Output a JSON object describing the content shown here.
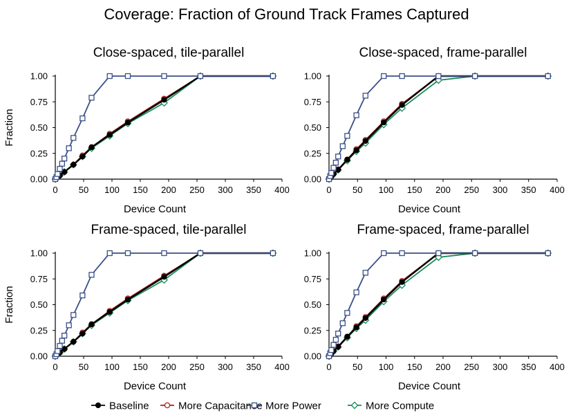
{
  "title": "Coverage: Fraction of Ground Track Frames Captured",
  "colors": {
    "Baseline": "#000000",
    "More Capacitance": "#b01c1c",
    "More Power": "#3a4f88",
    "More Compute": "#1a8a5a"
  },
  "legend": {
    "placement": "bottom-center",
    "entries": [
      {
        "name": "Baseline",
        "marker": "filled-circle"
      },
      {
        "name": "More Capacitance",
        "marker": "open-circle"
      },
      {
        "name": "More Power",
        "marker": "open-square"
      },
      {
        "name": "More Compute",
        "marker": "open-diamond"
      }
    ]
  },
  "chart_data": [
    {
      "type": "line",
      "title": "Close-spaced, tile-parallel",
      "xlabel": "Device Count",
      "ylabel": "Fraction",
      "xlim": [
        0,
        400
      ],
      "ylim": [
        0,
        1
      ],
      "xticks": [
        "0",
        "50",
        "100",
        "150",
        "200",
        "250",
        "300",
        "350",
        "400"
      ],
      "yticks": [
        "0.00",
        "0.25",
        "0.50",
        "0.75",
        "1.00"
      ],
      "grid": false,
      "series": [
        {
          "name": "Baseline",
          "x": [
            0,
            2,
            4,
            8,
            16,
            32,
            48,
            64,
            96,
            128,
            192,
            256,
            384
          ],
          "y": [
            0,
            0.01,
            0.02,
            0.035,
            0.07,
            0.14,
            0.22,
            0.31,
            0.43,
            0.55,
            0.77,
            1.0,
            1.0
          ]
        },
        {
          "name": "More Capacitance",
          "x": [
            0,
            2,
            4,
            8,
            16,
            32,
            48,
            64,
            96,
            128,
            192,
            256,
            384
          ],
          "y": [
            0,
            0.01,
            0.02,
            0.035,
            0.07,
            0.14,
            0.23,
            0.31,
            0.44,
            0.56,
            0.78,
            1.0,
            1.0
          ]
        },
        {
          "name": "More Power",
          "x": [
            0,
            2,
            4,
            8,
            12,
            16,
            24,
            32,
            48,
            64,
            96,
            128,
            192,
            256,
            384
          ],
          "y": [
            0,
            0.02,
            0.05,
            0.1,
            0.15,
            0.2,
            0.3,
            0.4,
            0.59,
            0.79,
            1.0,
            1.0,
            1.0,
            1.0,
            1.0
          ]
        },
        {
          "name": "More Compute",
          "x": [
            0,
            2,
            4,
            8,
            16,
            32,
            48,
            64,
            96,
            128,
            192,
            256,
            384
          ],
          "y": [
            0,
            0.01,
            0.02,
            0.035,
            0.07,
            0.14,
            0.22,
            0.3,
            0.42,
            0.54,
            0.74,
            1.0,
            1.0
          ]
        }
      ]
    },
    {
      "type": "line",
      "title": "Close-spaced, frame-parallel",
      "xlabel": "Device Count",
      "ylabel": "",
      "xlim": [
        0,
        400
      ],
      "ylim": [
        0,
        1
      ],
      "xticks": [
        "0",
        "50",
        "100",
        "150",
        "200",
        "250",
        "300",
        "350",
        "400"
      ],
      "yticks": [
        "0.00",
        "0.25",
        "0.50",
        "0.75",
        "1.00"
      ],
      "grid": false,
      "series": [
        {
          "name": "Baseline",
          "x": [
            0,
            2,
            4,
            8,
            16,
            32,
            48,
            64,
            96,
            128,
            192,
            256,
            384
          ],
          "y": [
            0,
            0.01,
            0.025,
            0.05,
            0.09,
            0.19,
            0.28,
            0.37,
            0.55,
            0.72,
            1.0,
            1.0,
            1.0
          ]
        },
        {
          "name": "More Capacitance",
          "x": [
            0,
            2,
            4,
            8,
            16,
            32,
            48,
            64,
            96,
            128,
            192,
            256,
            384
          ],
          "y": [
            0,
            0.01,
            0.025,
            0.05,
            0.095,
            0.19,
            0.29,
            0.38,
            0.56,
            0.73,
            1.0,
            1.0,
            1.0
          ]
        },
        {
          "name": "More Power",
          "x": [
            0,
            2,
            4,
            8,
            12,
            16,
            24,
            32,
            48,
            64,
            96,
            128,
            192,
            256,
            384
          ],
          "y": [
            0,
            0.03,
            0.06,
            0.11,
            0.16,
            0.22,
            0.32,
            0.42,
            0.62,
            0.81,
            1.0,
            1.0,
            1.0,
            1.0,
            1.0
          ]
        },
        {
          "name": "More Compute",
          "x": [
            0,
            2,
            4,
            8,
            16,
            32,
            48,
            64,
            96,
            128,
            192,
            256,
            384
          ],
          "y": [
            0,
            0.01,
            0.025,
            0.05,
            0.09,
            0.18,
            0.27,
            0.35,
            0.53,
            0.69,
            0.96,
            1.0,
            1.0
          ]
        }
      ]
    },
    {
      "type": "line",
      "title": "Frame-spaced, tile-parallel",
      "xlabel": "Device Count",
      "ylabel": "Fraction",
      "xlim": [
        0,
        400
      ],
      "ylim": [
        0,
        1
      ],
      "xticks": [
        "0",
        "50",
        "100",
        "150",
        "200",
        "250",
        "300",
        "350",
        "400"
      ],
      "yticks": [
        "0.00",
        "0.25",
        "0.50",
        "0.75",
        "1.00"
      ],
      "grid": false,
      "series": [
        {
          "name": "Baseline",
          "x": [
            0,
            2,
            4,
            8,
            16,
            32,
            48,
            64,
            96,
            128,
            192,
            256,
            384
          ],
          "y": [
            0,
            0.01,
            0.02,
            0.035,
            0.07,
            0.14,
            0.22,
            0.31,
            0.43,
            0.55,
            0.77,
            1.0,
            1.0
          ]
        },
        {
          "name": "More Capacitance",
          "x": [
            0,
            2,
            4,
            8,
            16,
            32,
            48,
            64,
            96,
            128,
            192,
            256,
            384
          ],
          "y": [
            0,
            0.01,
            0.02,
            0.035,
            0.07,
            0.14,
            0.23,
            0.31,
            0.44,
            0.56,
            0.78,
            1.0,
            1.0
          ]
        },
        {
          "name": "More Power",
          "x": [
            0,
            2,
            4,
            8,
            12,
            16,
            24,
            32,
            48,
            64,
            96,
            128,
            192,
            256,
            384
          ],
          "y": [
            0,
            0.02,
            0.05,
            0.1,
            0.15,
            0.2,
            0.3,
            0.4,
            0.59,
            0.79,
            1.0,
            1.0,
            1.0,
            1.0,
            1.0
          ]
        },
        {
          "name": "More Compute",
          "x": [
            0,
            2,
            4,
            8,
            16,
            32,
            48,
            64,
            96,
            128,
            192,
            256,
            384
          ],
          "y": [
            0,
            0.01,
            0.02,
            0.035,
            0.07,
            0.14,
            0.22,
            0.3,
            0.42,
            0.54,
            0.74,
            1.0,
            1.0
          ]
        }
      ]
    },
    {
      "type": "line",
      "title": "Frame-spaced, frame-parallel",
      "xlabel": "Device Count",
      "ylabel": "",
      "xlim": [
        0,
        400
      ],
      "ylim": [
        0,
        1
      ],
      "xticks": [
        "0",
        "50",
        "100",
        "150",
        "200",
        "250",
        "300",
        "350",
        "400"
      ],
      "yticks": [
        "0.00",
        "0.25",
        "0.50",
        "0.75",
        "1.00"
      ],
      "grid": false,
      "series": [
        {
          "name": "Baseline",
          "x": [
            0,
            2,
            4,
            8,
            16,
            32,
            48,
            64,
            96,
            128,
            192,
            256,
            384
          ],
          "y": [
            0,
            0.01,
            0.025,
            0.05,
            0.09,
            0.19,
            0.28,
            0.37,
            0.55,
            0.72,
            1.0,
            1.0,
            1.0
          ]
        },
        {
          "name": "More Capacitance",
          "x": [
            0,
            2,
            4,
            8,
            16,
            32,
            48,
            64,
            96,
            128,
            192,
            256,
            384
          ],
          "y": [
            0,
            0.01,
            0.025,
            0.05,
            0.095,
            0.19,
            0.29,
            0.38,
            0.56,
            0.73,
            1.0,
            1.0,
            1.0
          ]
        },
        {
          "name": "More Power",
          "x": [
            0,
            2,
            4,
            8,
            12,
            16,
            24,
            32,
            48,
            64,
            96,
            128,
            192,
            256,
            384
          ],
          "y": [
            0,
            0.03,
            0.06,
            0.11,
            0.16,
            0.22,
            0.32,
            0.42,
            0.62,
            0.81,
            1.0,
            1.0,
            1.0,
            1.0,
            1.0
          ]
        },
        {
          "name": "More Compute",
          "x": [
            0,
            2,
            4,
            8,
            16,
            32,
            48,
            64,
            96,
            128,
            192,
            256,
            384
          ],
          "y": [
            0,
            0.01,
            0.025,
            0.05,
            0.09,
            0.18,
            0.27,
            0.35,
            0.53,
            0.69,
            0.96,
            1.0,
            1.0
          ]
        }
      ]
    }
  ]
}
